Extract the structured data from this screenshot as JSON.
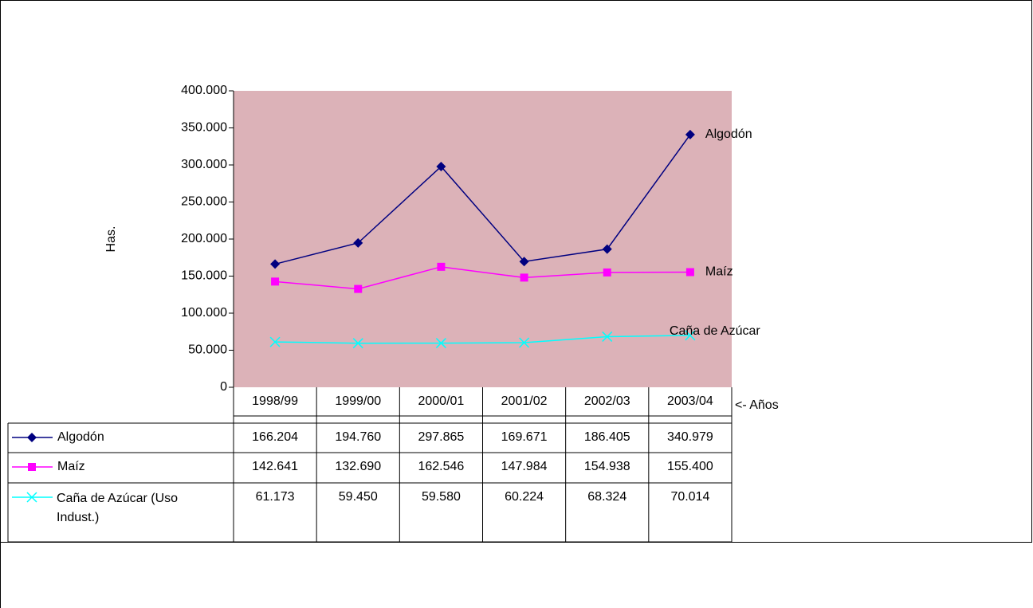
{
  "chart_data": {
    "type": "line",
    "y_label": "Has.",
    "x_label": "<- Años",
    "categories": [
      "1998/99",
      "1999/00",
      "2000/01",
      "2001/02",
      "2002/03",
      "2003/04"
    ],
    "series": [
      {
        "name": "Algodón",
        "color": "#000080",
        "marker": "diamond",
        "values": [
          166204,
          194760,
          297865,
          169671,
          186405,
          340979
        ],
        "value_labels": [
          "166.204",
          "194.760",
          "297.865",
          "169.671",
          "186.405",
          "340.979"
        ]
      },
      {
        "name": "Maíz",
        "color": "#ff00ff",
        "marker": "square",
        "values": [
          142641,
          132690,
          162546,
          147984,
          154938,
          155400
        ],
        "value_labels": [
          "142.641",
          "132.690",
          "162.546",
          "147.984",
          "154.938",
          "155.400"
        ]
      },
      {
        "name": "Caña de Azúcar (Uso Indust.)",
        "color": "#00ffff",
        "marker": "x",
        "values": [
          61173,
          59450,
          59580,
          60224,
          68324,
          70014
        ],
        "value_labels": [
          "61.173",
          "59.450",
          "59.580",
          "60.224",
          "68.324",
          "70.014"
        ]
      }
    ],
    "end_labels": [
      "Algodón",
      "Maíz",
      "Caña de Azúcar"
    ],
    "ylim": [
      0,
      400000
    ],
    "yticks": [
      0,
      {
        "value": 50000,
        "label": "50.000"
      },
      {
        "value": 100000,
        "label": "100.000"
      },
      {
        "value": 150000,
        "label": "150.000"
      },
      {
        "value": 200000,
        "label": "200.000"
      },
      {
        "value": 250000,
        "label": "250.000"
      },
      {
        "value": 300000,
        "label": "300.000"
      },
      {
        "value": 350000,
        "label": "350.000"
      },
      {
        "value": 400000,
        "label": "400.000"
      }
    ],
    "plot_background": "#dcb2b8"
  }
}
